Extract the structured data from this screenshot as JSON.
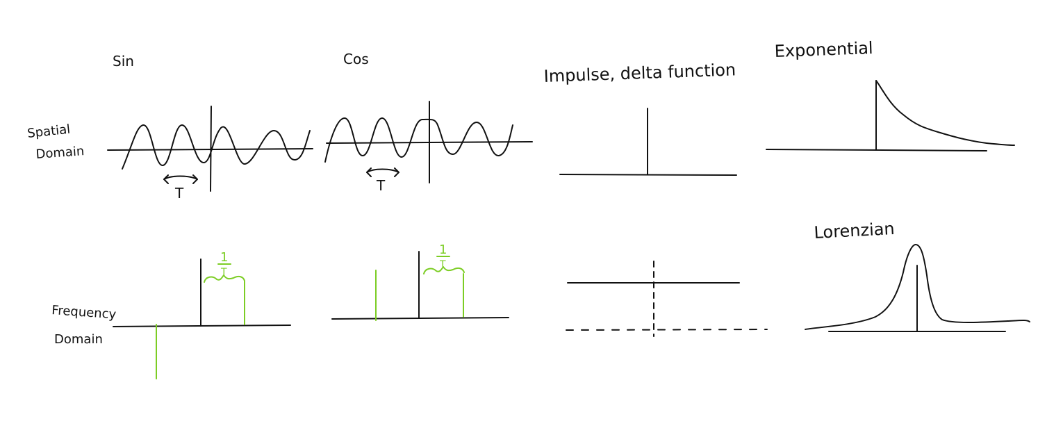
{
  "colors": {
    "background": "#ffffff",
    "ink": "#111111",
    "highlight": "#7ccd24"
  },
  "labels": {
    "sin": "Sin",
    "cos": "Cos",
    "impulse": "Impulse, delta function",
    "exponential": "Exponential",
    "lorenzian": "Lorenzian",
    "spatial_domain_line1": "Spatial",
    "spatial_domain_line2": "Domain",
    "frequency_domain_line1": "Frequency",
    "frequency_domain_line2": "Domain",
    "period_sin": "T",
    "period_cos": "T",
    "amp_sin_num": "1",
    "amp_sin_den": "T",
    "amp_cos_num": "1",
    "amp_cos_den": "T"
  }
}
